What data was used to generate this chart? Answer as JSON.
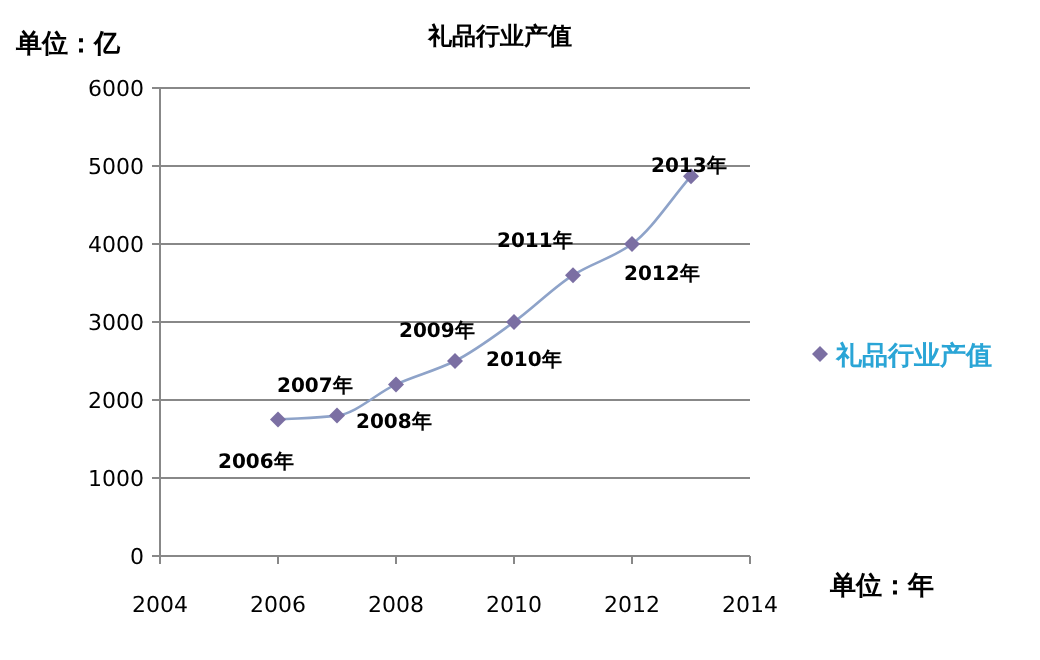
{
  "chart_data": {
    "type": "line",
    "title": "礼品行业产值",
    "ylabel": "单位：亿",
    "xlabel": "单位：年",
    "x": [
      2006,
      2007,
      2008,
      2009,
      2010,
      2011,
      2012,
      2013
    ],
    "series": [
      {
        "name": "礼品行业产值",
        "color": "#7b6fa3",
        "values": [
          1750,
          1800,
          2200,
          2500,
          3000,
          3600,
          4000,
          4870
        ]
      }
    ],
    "xlim": [
      2004,
      2014
    ],
    "xticks": [
      2004,
      2006,
      2008,
      2010,
      2012,
      2014
    ],
    "ylim": [
      0,
      6000
    ],
    "yticks": [
      0,
      1000,
      2000,
      3000,
      4000,
      5000,
      6000
    ],
    "grid": "y",
    "legend": "right",
    "marker": "diamond",
    "line_style": "solid",
    "annotations": [
      {
        "text": "2006年",
        "x": 2006,
        "y": 1750
      },
      {
        "text": "2007年",
        "x": 2007,
        "y": 1800
      },
      {
        "text": "2008年",
        "x": 2008,
        "y": 2200
      },
      {
        "text": "2009年",
        "x": 2009,
        "y": 2500
      },
      {
        "text": "2010年",
        "x": 2010,
        "y": 3000
      },
      {
        "text": "2011年",
        "x": 2011,
        "y": 3600
      },
      {
        "text": "2012年",
        "x": 2012,
        "y": 4000
      },
      {
        "text": "2013年",
        "x": 2013,
        "y": 4870
      }
    ]
  }
}
